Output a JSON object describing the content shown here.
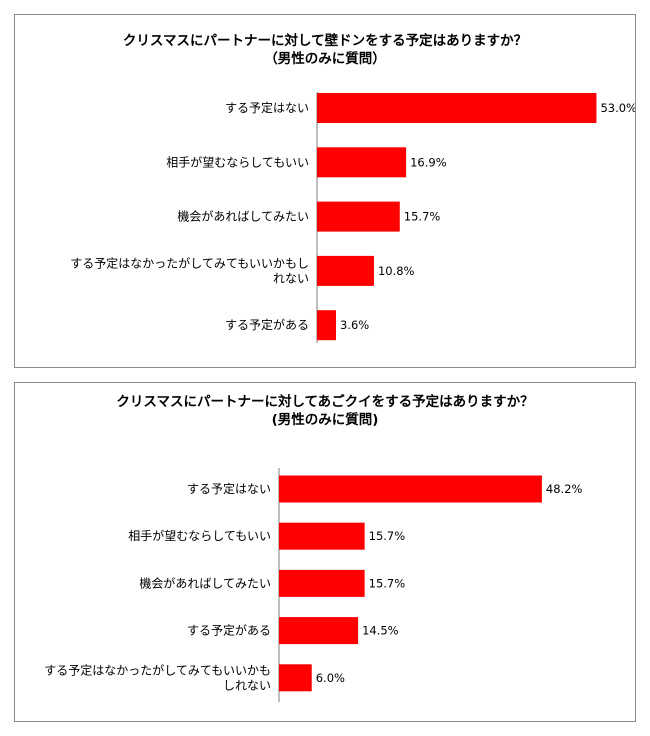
{
  "chart_data": [
    {
      "type": "bar",
      "orientation": "horizontal",
      "title": "クリスマスにパートナーに対して壁ドンをする予定はありますか？",
      "subtitle": "（男性のみに質問）",
      "categories": [
        "する予定はない",
        "相手が望むならしてもいい",
        "機会があればしてみたい",
        "する予定はなかったがしてみてもいいかもしれない",
        "する予定がある"
      ],
      "category_lines": [
        [
          "する予定はない"
        ],
        [
          "相手が望むならしてもいい"
        ],
        [
          "機会があればしてみたい"
        ],
        [
          "する予定はなかったがしてみてもいいかもし",
          "れない"
        ],
        [
          "する予定がある"
        ]
      ],
      "values": [
        53.0,
        16.9,
        15.7,
        10.8,
        3.6
      ],
      "value_labels": [
        "53.0%",
        "16.9%",
        "15.7%",
        "10.8%",
        "3.6%"
      ],
      "xlim": [
        0,
        55
      ],
      "bar_color": "#ff0000",
      "grid": false,
      "legend": "none"
    },
    {
      "type": "bar",
      "orientation": "horizontal",
      "title": "クリスマスにパートナーに対してあごクイをする予定はありますか？",
      "subtitle": "(男性のみに質問)",
      "categories": [
        "する予定はない",
        "相手が望むならしてもいい",
        "機会があればしてみたい",
        "する予定がある",
        "する予定はなかったがしてみてもいいかもしれない"
      ],
      "category_lines": [
        [
          "する予定はない"
        ],
        [
          "相手が望むならしてもいい"
        ],
        [
          "機会があればしてみたい"
        ],
        [
          "する予定がある"
        ],
        [
          "する予定はなかったがしてみてもいいかも",
          "しれない"
        ]
      ],
      "values": [
        48.2,
        15.7,
        15.7,
        14.5,
        6.0
      ],
      "value_labels": [
        "48.2%",
        "15.7%",
        "15.7%",
        "14.5%",
        "6.0%"
      ],
      "xlim": [
        0,
        55
      ],
      "bar_color": "#ff0000",
      "grid": false,
      "legend": "none"
    }
  ]
}
